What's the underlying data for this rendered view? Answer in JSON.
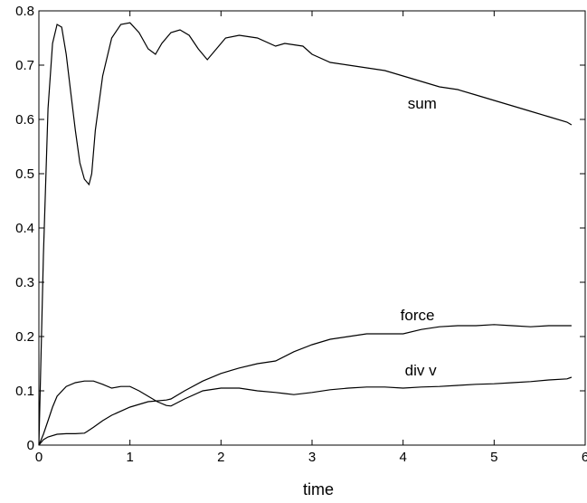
{
  "chart_data": {
    "type": "line",
    "title": "",
    "xlabel": "time",
    "ylabel": "",
    "xlim": [
      0,
      6
    ],
    "ylim": [
      0,
      0.8
    ],
    "grid": false,
    "x_ticks": [
      "0",
      "1",
      "2",
      "3",
      "4",
      "5",
      "6"
    ],
    "y_ticks": [
      "0",
      "0.1",
      "0.2",
      "0.3",
      "0.4",
      "0.5",
      "0.6",
      "0.7",
      "0.8"
    ],
    "series": [
      {
        "name": "sum",
        "x": [
          0,
          0.05,
          0.1,
          0.15,
          0.2,
          0.25,
          0.3,
          0.35,
          0.4,
          0.45,
          0.5,
          0.55,
          0.58,
          0.62,
          0.7,
          0.8,
          0.9,
          1.0,
          1.1,
          1.2,
          1.28,
          1.35,
          1.45,
          1.55,
          1.65,
          1.75,
          1.85,
          1.95,
          2.05,
          2.2,
          2.4,
          2.6,
          2.7,
          2.9,
          3.0,
          3.2,
          3.4,
          3.6,
          3.8,
          4.0,
          4.2,
          4.4,
          4.6,
          4.8,
          5.0,
          5.2,
          5.4,
          5.6,
          5.8,
          5.85
        ],
        "y": [
          0.0,
          0.35,
          0.62,
          0.74,
          0.775,
          0.77,
          0.72,
          0.65,
          0.58,
          0.52,
          0.49,
          0.48,
          0.5,
          0.58,
          0.68,
          0.75,
          0.775,
          0.778,
          0.76,
          0.73,
          0.72,
          0.74,
          0.76,
          0.765,
          0.755,
          0.73,
          0.71,
          0.73,
          0.75,
          0.755,
          0.75,
          0.735,
          0.74,
          0.735,
          0.72,
          0.705,
          0.7,
          0.695,
          0.69,
          0.68,
          0.67,
          0.66,
          0.655,
          0.645,
          0.635,
          0.625,
          0.615,
          0.605,
          0.595,
          0.59
        ]
      },
      {
        "name": "force",
        "x": [
          0,
          0.05,
          0.1,
          0.2,
          0.3,
          0.4,
          0.5,
          0.52,
          0.6,
          0.7,
          0.8,
          1.0,
          1.2,
          1.4,
          1.45,
          1.6,
          1.8,
          2.0,
          2.2,
          2.4,
          2.6,
          2.8,
          3.0,
          3.2,
          3.4,
          3.6,
          3.8,
          4.0,
          4.2,
          4.4,
          4.6,
          4.8,
          5.0,
          5.2,
          5.4,
          5.6,
          5.85
        ],
        "y": [
          0.0,
          0.01,
          0.015,
          0.02,
          0.021,
          0.021,
          0.022,
          0.024,
          0.033,
          0.045,
          0.055,
          0.07,
          0.08,
          0.083,
          0.085,
          0.1,
          0.118,
          0.132,
          0.142,
          0.15,
          0.155,
          0.172,
          0.185,
          0.195,
          0.2,
          0.205,
          0.205,
          0.205,
          0.213,
          0.218,
          0.22,
          0.22,
          0.222,
          0.22,
          0.218,
          0.22,
          0.22
        ]
      },
      {
        "name": "div v",
        "x": [
          0,
          0.05,
          0.1,
          0.15,
          0.2,
          0.3,
          0.4,
          0.5,
          0.6,
          0.7,
          0.8,
          0.9,
          1.0,
          1.1,
          1.2,
          1.3,
          1.4,
          1.45,
          1.6,
          1.8,
          2.0,
          2.2,
          2.4,
          2.6,
          2.7,
          2.8,
          3.0,
          3.2,
          3.4,
          3.6,
          3.8,
          4.0,
          4.2,
          4.4,
          4.6,
          4.8,
          5.0,
          5.2,
          5.4,
          5.6,
          5.8,
          5.85
        ],
        "y": [
          0.0,
          0.02,
          0.045,
          0.07,
          0.09,
          0.108,
          0.115,
          0.118,
          0.118,
          0.112,
          0.105,
          0.108,
          0.108,
          0.1,
          0.09,
          0.08,
          0.073,
          0.072,
          0.085,
          0.1,
          0.105,
          0.105,
          0.1,
          0.097,
          0.095,
          0.093,
          0.097,
          0.102,
          0.105,
          0.107,
          0.107,
          0.105,
          0.107,
          0.108,
          0.11,
          0.112,
          0.113,
          0.115,
          0.117,
          0.12,
          0.122,
          0.125
        ]
      }
    ],
    "annotations": [
      {
        "text": "sum",
        "x": 4.05,
        "y": 0.62
      },
      {
        "text": "force",
        "x": 3.97,
        "y": 0.23
      },
      {
        "text": "div v",
        "x": 4.02,
        "y": 0.128
      }
    ]
  }
}
